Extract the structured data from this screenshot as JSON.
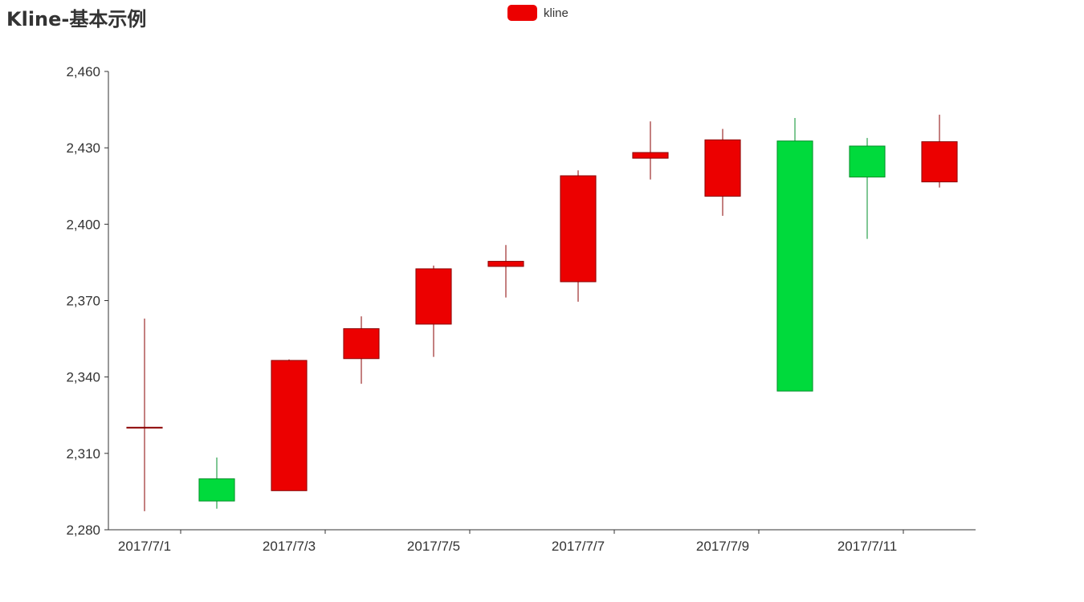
{
  "title": "Kline-基本示例",
  "legend": {
    "label": "kline",
    "color": "#ec0000"
  },
  "colors": {
    "up_fill": "#ec0000",
    "up_border": "#8a0000",
    "down_fill": "#00da3c",
    "down_border": "#008f28",
    "axis": "#333333"
  },
  "chart_data": {
    "type": "candlestick",
    "title": "Kline-基本示例",
    "x": [
      "2017/7/1",
      "2017/7/2",
      "2017/7/3",
      "2017/7/4",
      "2017/7/5",
      "2017/7/6",
      "2017/7/7",
      "2017/7/8",
      "2017/7/9",
      "2017/7/10",
      "2017/7/11",
      "2017/7/12"
    ],
    "x_tick_labels": [
      "2017/7/1",
      "2017/7/3",
      "2017/7/5",
      "2017/7/7",
      "2017/7/9",
      "2017/7/11"
    ],
    "series": [
      {
        "name": "kline",
        "values": [
          {
            "open": 2320.26,
            "close": 2320.26,
            "low": 2287.3,
            "high": 2362.94
          },
          {
            "open": 2300,
            "close": 2291.3,
            "low": 2288.26,
            "high": 2308.38
          },
          {
            "open": 2295.35,
            "close": 2346.5,
            "low": 2295.35,
            "high": 2346.92
          },
          {
            "open": 2347.22,
            "close": 2358.98,
            "low": 2337.35,
            "high": 2363.8
          },
          {
            "open": 2360.75,
            "close": 2382.48,
            "low": 2347.89,
            "high": 2383.76
          },
          {
            "open": 2383.43,
            "close": 2385.42,
            "low": 2371.23,
            "high": 2391.82
          },
          {
            "open": 2377.41,
            "close": 2419.02,
            "low": 2369.57,
            "high": 2421.15
          },
          {
            "open": 2425.92,
            "close": 2428.15,
            "low": 2417.58,
            "high": 2440.38
          },
          {
            "open": 2411,
            "close": 2433.13,
            "low": 2403.3,
            "high": 2437.42
          },
          {
            "open": 2432.68,
            "close": 2334.48,
            "low": 2427.7,
            "high": 2441.73
          },
          {
            "open": 2430.69,
            "close": 2418.53,
            "low": 2394.22,
            "high": 2433.89
          },
          {
            "open": 2416.62,
            "close": 2432.4,
            "low": 2414.4,
            "high": 2443.03
          }
        ]
      }
    ],
    "y_ticks": [
      2280,
      2310,
      2340,
      2370,
      2400,
      2430,
      2460
    ],
    "y_tick_labels": [
      "2,280",
      "2,310",
      "2,340",
      "2,370",
      "2,400",
      "2,430",
      "2,460"
    ],
    "ylim": [
      2280,
      2460
    ],
    "grid": false,
    "legend_position": "top-center"
  }
}
